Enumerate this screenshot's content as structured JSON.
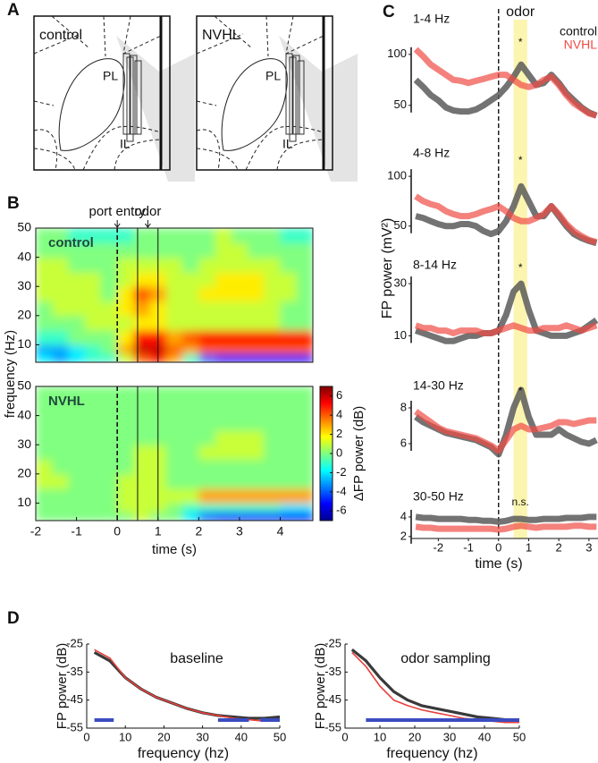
{
  "panel_a": {
    "label": "A",
    "diagrams": [
      {
        "title": "control",
        "pl": "PL",
        "il": "IL"
      },
      {
        "title": "NVHL",
        "pl": "PL",
        "il": "IL"
      }
    ]
  },
  "chart_data": [
    {
      "type": "heatmap",
      "panel_label": "B",
      "title": "control",
      "annotations": [
        "port entry",
        "odor"
      ],
      "ylabel": "frequency (Hz)",
      "event_lines": [
        0,
        0.5,
        1
      ],
      "x_edges": [
        -2,
        -1.6,
        -1.2,
        -0.8,
        -0.4,
        0,
        0.4,
        0.8,
        1.2,
        1.6,
        2,
        2.4,
        2.8,
        3.2,
        3.6,
        4,
        4.4,
        4.8
      ],
      "y_edges": [
        4,
        7,
        10,
        15,
        20,
        25,
        30,
        35,
        40,
        45,
        50
      ],
      "z": [
        [
          -2,
          -3,
          -2,
          -1,
          -1,
          1,
          4,
          5,
          3,
          -1,
          -4,
          -5,
          -5,
          -5,
          -5,
          -5,
          -5
        ],
        [
          -3,
          -3,
          -2,
          -1,
          0,
          3,
          6,
          6,
          4,
          3,
          4,
          4,
          4,
          4,
          4,
          4,
          4
        ],
        [
          -1,
          -1,
          0,
          0,
          0,
          2,
          5,
          5,
          3,
          4,
          5,
          5,
          5,
          5,
          5,
          5,
          5
        ],
        [
          0,
          0,
          0,
          1,
          1,
          1,
          2,
          2,
          1,
          1,
          1,
          1,
          1,
          1,
          1,
          0,
          0
        ],
        [
          0,
          1,
          1,
          1,
          1,
          2,
          3,
          2,
          1,
          1,
          1,
          1,
          1,
          1,
          1,
          0,
          0
        ],
        [
          1,
          1,
          1,
          1,
          0,
          2,
          4,
          3,
          1,
          1,
          2,
          2,
          2,
          2,
          1,
          1,
          0
        ],
        [
          1,
          1,
          1,
          1,
          0,
          1,
          2,
          2,
          1,
          1,
          1,
          2,
          2,
          2,
          1,
          1,
          0
        ],
        [
          1,
          1,
          0,
          0,
          0,
          1,
          1,
          1,
          1,
          0,
          1,
          1,
          1,
          1,
          1,
          0,
          0
        ],
        [
          0,
          0,
          0,
          0,
          0,
          0,
          0,
          0,
          0,
          0,
          0,
          1,
          1,
          0,
          0,
          0,
          0
        ],
        [
          0,
          0,
          -1,
          -1,
          -1,
          -1,
          0,
          0,
          0,
          0,
          0,
          1,
          0,
          0,
          0,
          -1,
          -1
        ]
      ],
      "xlim": [
        -2,
        4.8
      ],
      "ylim": [
        4,
        50
      ],
      "yticks": [
        10,
        20,
        30,
        40,
        50
      ],
      "clim": [
        -7,
        7
      ]
    },
    {
      "type": "heatmap",
      "title": "NVHL",
      "xlabel": "time (s)",
      "colorbar_label": "ΔFP power (dB)",
      "event_lines": [
        0,
        0.5,
        1
      ],
      "x_edges": [
        -2,
        -1.6,
        -1.2,
        -0.8,
        -0.4,
        0,
        0.4,
        0.8,
        1.2,
        1.6,
        2,
        2.4,
        2.8,
        3.2,
        3.6,
        4,
        4.4,
        4.8
      ],
      "y_edges": [
        4,
        7,
        10,
        15,
        20,
        25,
        30,
        35,
        40,
        45,
        50
      ],
      "z": [
        [
          0,
          0,
          0,
          0,
          0,
          0,
          1,
          0,
          0,
          -2,
          -4,
          -5,
          -5,
          -5,
          -5,
          -5,
          -5
        ],
        [
          0,
          0,
          0,
          0,
          0,
          1,
          1,
          1,
          0,
          -1,
          -1,
          -1,
          -1,
          -1,
          -1,
          -2,
          -2
        ],
        [
          0,
          0,
          0,
          0,
          0,
          1,
          1,
          1,
          1,
          1,
          3,
          3,
          3,
          3,
          3,
          3,
          3
        ],
        [
          1,
          1,
          0,
          0,
          0,
          1,
          1,
          1,
          0,
          0,
          0,
          0,
          0,
          0,
          0,
          0,
          0
        ],
        [
          1,
          0,
          0,
          0,
          0,
          0,
          1,
          1,
          0,
          0,
          0,
          0,
          0,
          0,
          0,
          0,
          0
        ],
        [
          0,
          0,
          0,
          0,
          0,
          0,
          1,
          1,
          0,
          0,
          1,
          1,
          1,
          1,
          0,
          0,
          0
        ],
        [
          0,
          0,
          0,
          0,
          0,
          0,
          0,
          0,
          0,
          0,
          0,
          1,
          1,
          1,
          0,
          0,
          0
        ],
        [
          0,
          0,
          0,
          0,
          0,
          0,
          0,
          0,
          0,
          0,
          0,
          0,
          0,
          0,
          0,
          0,
          0
        ],
        [
          0,
          0,
          0,
          0,
          0,
          0,
          0,
          0,
          0,
          0,
          0,
          0,
          0,
          0,
          0,
          0,
          0
        ],
        [
          0,
          0,
          0,
          0,
          0,
          0,
          0,
          0,
          0,
          0,
          0,
          0,
          0,
          0,
          0,
          0,
          0
        ]
      ],
      "xlim": [
        -2,
        4.8
      ],
      "ylim": [
        4,
        50
      ],
      "xticks": [
        -2,
        -1,
        0,
        1,
        2,
        3,
        4
      ],
      "yticks": [
        10,
        20,
        30,
        40,
        50
      ],
      "clim": [
        -7,
        7
      ],
      "colorbar_ticks": [
        -6,
        -4,
        -2,
        0,
        2,
        4,
        6
      ]
    },
    {
      "type": "line",
      "panel_label": "C",
      "annotation": "odor",
      "ylabel": "FP power (mV²)",
      "xlabel": "time (s)",
      "legend": [
        {
          "name": "control",
          "color": "#5a5a5a"
        },
        {
          "name": "NVHL",
          "color": "#ef4b45"
        }
      ],
      "highlight": [
        0.5,
        0.95
      ],
      "highlight_color": "#fbf5b0",
      "event_lines": [
        0
      ],
      "x": [
        -2.75,
        -2.5,
        -2.25,
        -2,
        -1.75,
        -1.5,
        -1.25,
        -1,
        -0.75,
        -0.5,
        -0.25,
        0,
        0.25,
        0.5,
        0.75,
        1,
        1.25,
        1.5,
        1.75,
        2,
        2.25,
        2.5,
        2.75,
        3,
        3.25
      ],
      "xlim": [
        -2.9,
        3.3
      ],
      "xticks": [
        -2,
        -1,
        0,
        1,
        2,
        3
      ],
      "subplots": [
        {
          "title": "1-4 Hz",
          "marker": "*",
          "ylim": [
            20,
            120
          ],
          "yticks": [
            50,
            100
          ],
          "values": [
            [
              75,
              68,
              60,
              55,
              48,
              45,
              44,
              44,
              46,
              50,
              55,
              60,
              68,
              78,
              90,
              80,
              70,
              72,
              80,
              72,
              62,
              55,
              48,
              43,
              40
            ],
            [
              105,
              98,
              90,
              85,
              80,
              75,
              74,
              72,
              74,
              76,
              78,
              80,
              80,
              75,
              70,
              68,
              70,
              75,
              78,
              70,
              60,
              52,
              47,
              42,
              40
            ]
          ]
        },
        {
          "title": "4-8 Hz",
          "marker": "*",
          "ylim": [
            30,
            110
          ],
          "yticks": [
            50,
            100
          ],
          "values": [
            [
              60,
              58,
              55,
              52,
              50,
              50,
              52,
              52,
              50,
              45,
              42,
              45,
              55,
              70,
              90,
              75,
              60,
              60,
              70,
              60,
              50,
              42,
              38,
              35,
              33
            ],
            [
              80,
              75,
              72,
              70,
              65,
              62,
              60,
              60,
              62,
              65,
              67,
              70,
              65,
              58,
              55,
              55,
              58,
              62,
              70,
              62,
              52,
              45,
              40,
              36,
              34
            ]
          ]
        },
        {
          "title": "8-14 Hz",
          "marker": "*",
          "ylim": [
            5,
            40
          ],
          "yticks": [
            10,
            30
          ],
          "values": [
            [
              12,
              11,
              10,
              9,
              8,
              8,
              9,
              10,
              10,
              11,
              11,
              12,
              18,
              27,
              30,
              20,
              12,
              11,
              10,
              10,
              10,
              11,
              12,
              14,
              16
            ],
            [
              14,
              13,
              13,
              12,
              12,
              11,
              12,
              12,
              12,
              11,
              11,
              12,
              13,
              14,
              13,
              12,
              12,
              13,
              13,
              13,
              14,
              13,
              12,
              13,
              14
            ]
          ]
        },
        {
          "title": "14-30 Hz",
          "marker": "*",
          "ylim": [
            4.8,
            9.5
          ],
          "yticks": [
            6,
            8
          ],
          "values": [
            [
              7.5,
              7.2,
              7,
              6.8,
              6.6,
              6.5,
              6.4,
              6.3,
              6.2,
              6,
              5.8,
              5.4,
              6.5,
              8,
              9,
              7.5,
              6.5,
              6.5,
              6.5,
              6.8,
              6.5,
              6.3,
              6.1,
              6,
              6.2
            ],
            [
              7.8,
              7.5,
              7.2,
              6.9,
              6.7,
              6.6,
              6.5,
              6.4,
              6.3,
              6.1,
              5.9,
              5.6,
              6.2,
              6.8,
              7,
              6.8,
              6.8,
              6.9,
              7,
              7.2,
              7.2,
              7.1,
              7.2,
              7.3,
              7.3
            ]
          ]
        },
        {
          "title": "30-50 Hz",
          "marker": "n.s.",
          "ylim": [
            1.8,
            5
          ],
          "yticks": [
            2,
            4
          ],
          "values": [
            [
              4,
              3.9,
              3.9,
              3.8,
              3.8,
              3.8,
              3.8,
              3.7,
              3.7,
              3.6,
              3.6,
              3.5,
              3.6,
              3.8,
              3.8,
              3.7,
              3.7,
              3.8,
              3.8,
              3.8,
              3.9,
              3.9,
              3.9,
              4,
              4
            ],
            [
              3,
              2.9,
              2.9,
              2.8,
              2.8,
              2.8,
              2.8,
              2.8,
              2.8,
              2.8,
              2.8,
              2.7,
              2.8,
              3,
              3.1,
              3,
              2.9,
              3,
              3,
              3,
              3,
              3.1,
              3.1,
              3,
              3
            ]
          ]
        }
      ]
    },
    {
      "type": "line",
      "panel_label": "D",
      "title": "baseline",
      "xlabel": "frequency (hz)",
      "ylabel": "FP power (dB)",
      "x": [
        2,
        6,
        10,
        14,
        18,
        22,
        26,
        30,
        34,
        38,
        42,
        46,
        50
      ],
      "xlim": [
        0,
        50
      ],
      "xticks": [
        0,
        10,
        20,
        30,
        40,
        50
      ],
      "ylim": [
        -55,
        -25
      ],
      "yticks": [
        -25,
        -35,
        -45,
        -55
      ],
      "series": [
        {
          "color": "#3a3a3a",
          "values": [
            -28,
            -31,
            -37,
            -41,
            -44,
            -46,
            -48,
            -49.5,
            -50.5,
            -51,
            -51.5,
            -51.5,
            -51
          ]
        },
        {
          "color": "#e8413c",
          "values": [
            -27,
            -30,
            -37,
            -41,
            -44,
            -46,
            -48,
            -49.5,
            -50.5,
            -51.5,
            -52,
            -52.5,
            -52
          ]
        }
      ],
      "sig_color": "#3b4cc0",
      "sig_ranges": [
        [
          2,
          7
        ],
        [
          34,
          42
        ],
        [
          45,
          50
        ]
      ]
    },
    {
      "type": "line",
      "title": "odor sampling",
      "xlabel": "frequency (hz)",
      "ylabel": "FP power (dB)",
      "x": [
        2,
        6,
        10,
        14,
        18,
        22,
        26,
        30,
        34,
        38,
        42,
        46,
        50
      ],
      "xlim": [
        0,
        50
      ],
      "xticks": [
        0,
        10,
        20,
        30,
        40,
        50
      ],
      "ylim": [
        -55,
        -25
      ],
      "yticks": [
        -25,
        -35,
        -45,
        -55
      ],
      "series": [
        {
          "color": "#3a3a3a",
          "values": [
            -27,
            -31,
            -37,
            -42,
            -45,
            -47,
            -48,
            -49,
            -50,
            -51,
            -51.5,
            -52,
            -52
          ]
        },
        {
          "color": "#e8413c",
          "values": [
            -28,
            -33,
            -40,
            -45,
            -47,
            -48.5,
            -49.5,
            -50.5,
            -51.5,
            -52,
            -52.5,
            -53,
            -53
          ]
        }
      ],
      "sig_color": "#3b4cc0",
      "sig_ranges": [
        [
          6,
          50
        ]
      ]
    }
  ]
}
